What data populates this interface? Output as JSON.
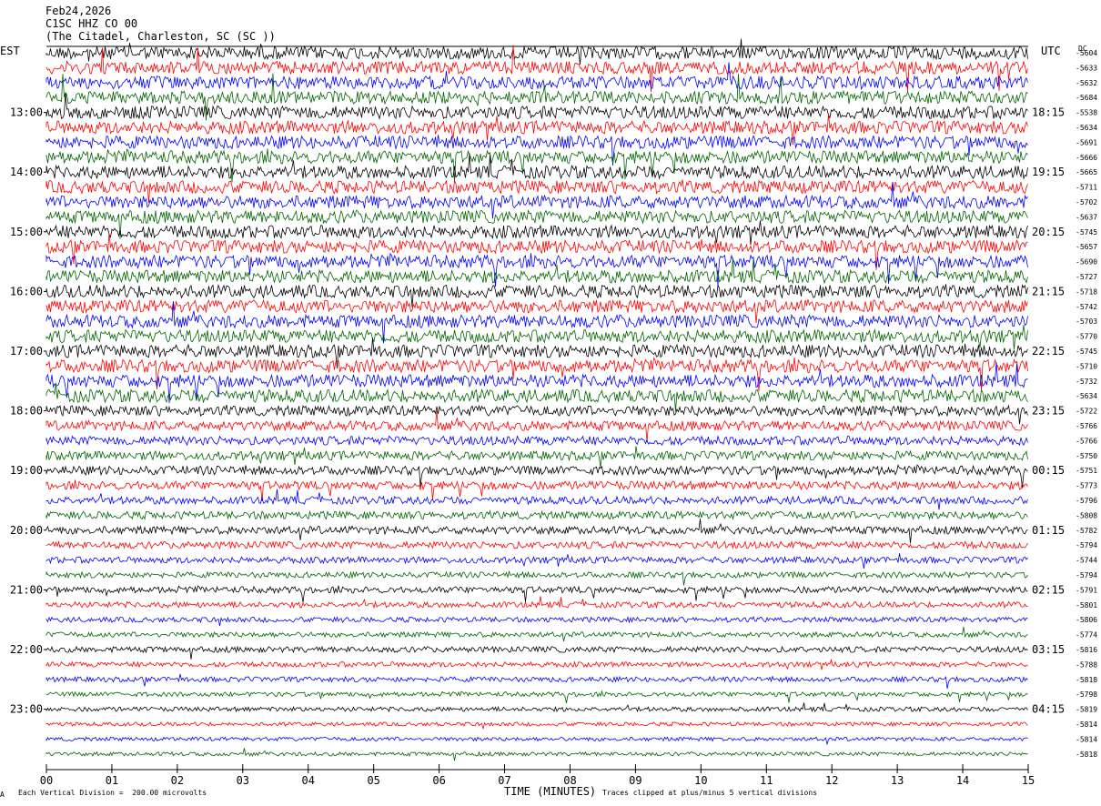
{
  "header": {
    "date": "Feb24,2026",
    "channel": "C1SC HHZ CO 00",
    "station": "(The Citadel, Charleston, SC (SC ))"
  },
  "left_timezone": "EST",
  "right_timezone": "UTC",
  "dc_label": "DC",
  "x_axis_label": "TIME (MINUTES)",
  "footer": {
    "scale_note": "Each Vertical Division =  200.00 microvolts",
    "clip_note": "Traces clipped at plus/minus 5 vertical divisions",
    "corner_mark": "A"
  },
  "colors": {
    "black": "#000000",
    "red": "#ff0000",
    "blue": "#0000ff",
    "green": "#006400"
  },
  "chart_data": {
    "type": "line",
    "description_units": "helicorder traces, one row per 15 minutes",
    "x_ticks": [
      "00",
      "01",
      "02",
      "03",
      "04",
      "05",
      "06",
      "07",
      "08",
      "09",
      "10",
      "11",
      "12",
      "13",
      "14",
      "15"
    ],
    "xlim": [
      0,
      15
    ],
    "left_hour_labels": [
      "13:00",
      "14:00",
      "15:00",
      "16:00",
      "17:00",
      "18:00",
      "19:00",
      "20:00",
      "21:00",
      "22:00",
      "23:00"
    ],
    "right_hour_labels": [
      "18:15",
      "19:15",
      "20:15",
      "21:15",
      "22:15",
      "23:15",
      "00:15",
      "01:15",
      "02:15",
      "03:15",
      "04:15"
    ],
    "row_color_cycle": [
      "black",
      "red",
      "blue",
      "green"
    ],
    "dc_offsets": [
      -5604,
      -5633,
      -5632,
      -5684,
      -5538,
      -5634,
      -5691,
      -5666,
      -5665,
      -5711,
      -5702,
      -5637,
      -5745,
      -5657,
      -5690,
      -5727,
      -5718,
      -5742,
      -5703,
      -5770,
      -5745,
      -5710,
      -5732,
      -5634,
      -5722,
      -5766,
      -5766,
      -5750,
      -5751,
      -5773,
      -5796,
      -5808,
      -5782,
      -5794,
      -5744,
      -5794,
      -5791,
      -5801,
      -5806,
      -5774,
      -5816,
      -5788,
      -5818,
      -5798,
      -5819,
      -5814,
      -5814,
      -5818
    ],
    "row_amplitude_levels": [
      1.0,
      1.0,
      1.0,
      1.0,
      1.0,
      1.0,
      1.0,
      1.0,
      1.0,
      1.0,
      1.0,
      1.0,
      1.0,
      1.0,
      1.0,
      1.0,
      1.0,
      1.0,
      1.0,
      1.0,
      1.0,
      1.0,
      1.0,
      1.0,
      0.8,
      0.75,
      0.7,
      0.7,
      0.7,
      0.65,
      0.6,
      0.6,
      0.6,
      0.55,
      0.5,
      0.45,
      0.5,
      0.45,
      0.4,
      0.4,
      0.45,
      0.4,
      0.4,
      0.35,
      0.35,
      0.3,
      0.3,
      0.3
    ]
  }
}
